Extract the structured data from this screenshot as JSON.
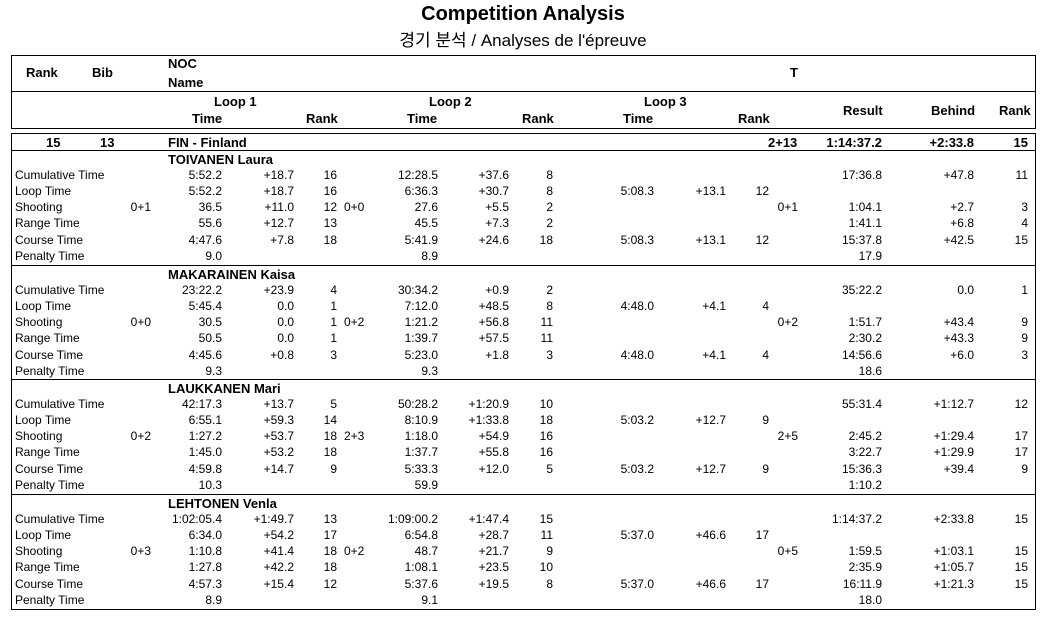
{
  "title": "Competition Analysis",
  "subtitle": "경기 분석 / Analyses de l'épreuve",
  "header": {
    "rank": "Rank",
    "bib": "Bib",
    "noc": "NOC",
    "name": "Name",
    "t": "T",
    "loop1": "Loop 1",
    "loop2": "Loop 2",
    "loop3": "Loop 3",
    "time": "Time",
    "rank_sub": "Rank",
    "result": "Result",
    "behind": "Behind",
    "rank_final": "Rank"
  },
  "team": {
    "rank": "15",
    "bib": "13",
    "noc": "FIN - Finland",
    "t": "2+13",
    "result": "1:14:37.2",
    "behind": "+2:33.8",
    "final_rank": "15"
  },
  "athletes": [
    {
      "name": "TOIVANEN Laura",
      "rows": [
        {
          "label": "Cumulative Time",
          "sh1": "",
          "l1t": "5:52.2",
          "l1b": "+18.7",
          "l1r": "16",
          "sh2": "",
          "l2t": "12:28.5",
          "l2b": "+37.6",
          "l2r": "8",
          "l3t": "",
          "l3b": "",
          "l3r": "",
          "sht": "",
          "res": "17:36.8",
          "beh": "+47.8",
          "rk": "11"
        },
        {
          "label": "Loop Time",
          "sh1": "",
          "l1t": "5:52.2",
          "l1b": "+18.7",
          "l1r": "16",
          "sh2": "",
          "l2t": "6:36.3",
          "l2b": "+30.7",
          "l2r": "8",
          "l3t": "5:08.3",
          "l3b": "+13.1",
          "l3r": "12",
          "sht": "",
          "res": "",
          "beh": "",
          "rk": ""
        },
        {
          "label": "Shooting",
          "sh1": "0+1",
          "l1t": "36.5",
          "l1b": "+11.0",
          "l1r": "12",
          "sh2": "0+0",
          "l2t": "27.6",
          "l2b": "+5.5",
          "l2r": "2",
          "l3t": "",
          "l3b": "",
          "l3r": "",
          "sht": "0+1",
          "res": "1:04.1",
          "beh": "+2.7",
          "rk": "3"
        },
        {
          "label": "Range Time",
          "sh1": "",
          "l1t": "55.6",
          "l1b": "+12.7",
          "l1r": "13",
          "sh2": "",
          "l2t": "45.5",
          "l2b": "+7.3",
          "l2r": "2",
          "l3t": "",
          "l3b": "",
          "l3r": "",
          "sht": "",
          "res": "1:41.1",
          "beh": "+6.8",
          "rk": "4"
        },
        {
          "label": "Course Time",
          "sh1": "",
          "l1t": "4:47.6",
          "l1b": "+7.8",
          "l1r": "18",
          "sh2": "",
          "l2t": "5:41.9",
          "l2b": "+24.6",
          "l2r": "18",
          "l3t": "5:08.3",
          "l3b": "+13.1",
          "l3r": "12",
          "sht": "",
          "res": "15:37.8",
          "beh": "+42.5",
          "rk": "15"
        },
        {
          "label": "Penalty Time",
          "sh1": "",
          "l1t": "9.0",
          "l1b": "",
          "l1r": "",
          "sh2": "",
          "l2t": "8.9",
          "l2b": "",
          "l2r": "",
          "l3t": "",
          "l3b": "",
          "l3r": "",
          "sht": "",
          "res": "17.9",
          "beh": "",
          "rk": ""
        }
      ]
    },
    {
      "name": "MAKARAINEN Kaisa",
      "rows": [
        {
          "label": "Cumulative Time",
          "sh1": "",
          "l1t": "23:22.2",
          "l1b": "+23.9",
          "l1r": "4",
          "sh2": "",
          "l2t": "30:34.2",
          "l2b": "+0.9",
          "l2r": "2",
          "l3t": "",
          "l3b": "",
          "l3r": "",
          "sht": "",
          "res": "35:22.2",
          "beh": "0.0",
          "rk": "1"
        },
        {
          "label": "Loop Time",
          "sh1": "",
          "l1t": "5:45.4",
          "l1b": "0.0",
          "l1r": "1",
          "sh2": "",
          "l2t": "7:12.0",
          "l2b": "+48.5",
          "l2r": "8",
          "l3t": "4:48.0",
          "l3b": "+4.1",
          "l3r": "4",
          "sht": "",
          "res": "",
          "beh": "",
          "rk": ""
        },
        {
          "label": "Shooting",
          "sh1": "0+0",
          "l1t": "30.5",
          "l1b": "0.0",
          "l1r": "1",
          "sh2": "0+2",
          "l2t": "1:21.2",
          "l2b": "+56.8",
          "l2r": "11",
          "l3t": "",
          "l3b": "",
          "l3r": "",
          "sht": "0+2",
          "res": "1:51.7",
          "beh": "+43.4",
          "rk": "9"
        },
        {
          "label": "Range Time",
          "sh1": "",
          "l1t": "50.5",
          "l1b": "0.0",
          "l1r": "1",
          "sh2": "",
          "l2t": "1:39.7",
          "l2b": "+57.5",
          "l2r": "11",
          "l3t": "",
          "l3b": "",
          "l3r": "",
          "sht": "",
          "res": "2:30.2",
          "beh": "+43.3",
          "rk": "9"
        },
        {
          "label": "Course Time",
          "sh1": "",
          "l1t": "4:45.6",
          "l1b": "+0.8",
          "l1r": "3",
          "sh2": "",
          "l2t": "5:23.0",
          "l2b": "+1.8",
          "l2r": "3",
          "l3t": "4:48.0",
          "l3b": "+4.1",
          "l3r": "4",
          "sht": "",
          "res": "14:56.6",
          "beh": "+6.0",
          "rk": "3"
        },
        {
          "label": "Penalty Time",
          "sh1": "",
          "l1t": "9.3",
          "l1b": "",
          "l1r": "",
          "sh2": "",
          "l2t": "9.3",
          "l2b": "",
          "l2r": "",
          "l3t": "",
          "l3b": "",
          "l3r": "",
          "sht": "",
          "res": "18.6",
          "beh": "",
          "rk": ""
        }
      ]
    },
    {
      "name": "LAUKKANEN Mari",
      "rows": [
        {
          "label": "Cumulative Time",
          "sh1": "",
          "l1t": "42:17.3",
          "l1b": "+13.7",
          "l1r": "5",
          "sh2": "",
          "l2t": "50:28.2",
          "l2b": "+1:20.9",
          "l2r": "10",
          "l3t": "",
          "l3b": "",
          "l3r": "",
          "sht": "",
          "res": "55:31.4",
          "beh": "+1:12.7",
          "rk": "12"
        },
        {
          "label": "Loop Time",
          "sh1": "",
          "l1t": "6:55.1",
          "l1b": "+59.3",
          "l1r": "14",
          "sh2": "",
          "l2t": "8:10.9",
          "l2b": "+1:33.8",
          "l2r": "18",
          "l3t": "5:03.2",
          "l3b": "+12.7",
          "l3r": "9",
          "sht": "",
          "res": "",
          "beh": "",
          "rk": ""
        },
        {
          "label": "Shooting",
          "sh1": "0+2",
          "l1t": "1:27.2",
          "l1b": "+53.7",
          "l1r": "18",
          "sh2": "2+3",
          "l2t": "1:18.0",
          "l2b": "+54.9",
          "l2r": "16",
          "l3t": "",
          "l3b": "",
          "l3r": "",
          "sht": "2+5",
          "res": "2:45.2",
          "beh": "+1:29.4",
          "rk": "17"
        },
        {
          "label": "Range Time",
          "sh1": "",
          "l1t": "1:45.0",
          "l1b": "+53.2",
          "l1r": "18",
          "sh2": "",
          "l2t": "1:37.7",
          "l2b": "+55.8",
          "l2r": "16",
          "l3t": "",
          "l3b": "",
          "l3r": "",
          "sht": "",
          "res": "3:22.7",
          "beh": "+1:29.9",
          "rk": "17"
        },
        {
          "label": "Course Time",
          "sh1": "",
          "l1t": "4:59.8",
          "l1b": "+14.7",
          "l1r": "9",
          "sh2": "",
          "l2t": "5:33.3",
          "l2b": "+12.0",
          "l2r": "5",
          "l3t": "5:03.2",
          "l3b": "+12.7",
          "l3r": "9",
          "sht": "",
          "res": "15:36.3",
          "beh": "+39.4",
          "rk": "9"
        },
        {
          "label": "Penalty Time",
          "sh1": "",
          "l1t": "10.3",
          "l1b": "",
          "l1r": "",
          "sh2": "",
          "l2t": "59.9",
          "l2b": "",
          "l2r": "",
          "l3t": "",
          "l3b": "",
          "l3r": "",
          "sht": "",
          "res": "1:10.2",
          "beh": "",
          "rk": ""
        }
      ]
    },
    {
      "name": "LEHTONEN Venla",
      "rows": [
        {
          "label": "Cumulative Time",
          "sh1": "",
          "l1t": "1:02:05.4",
          "l1b": "+1:49.7",
          "l1r": "13",
          "sh2": "",
          "l2t": "1:09:00.2",
          "l2b": "+1:47.4",
          "l2r": "15",
          "l3t": "",
          "l3b": "",
          "l3r": "",
          "sht": "",
          "res": "1:14:37.2",
          "beh": "+2:33.8",
          "rk": "15"
        },
        {
          "label": "Loop Time",
          "sh1": "",
          "l1t": "6:34.0",
          "l1b": "+54.2",
          "l1r": "17",
          "sh2": "",
          "l2t": "6:54.8",
          "l2b": "+28.7",
          "l2r": "11",
          "l3t": "5:37.0",
          "l3b": "+46.6",
          "l3r": "17",
          "sht": "",
          "res": "",
          "beh": "",
          "rk": ""
        },
        {
          "label": "Shooting",
          "sh1": "0+3",
          "l1t": "1:10.8",
          "l1b": "+41.4",
          "l1r": "18",
          "sh2": "0+2",
          "l2t": "48.7",
          "l2b": "+21.7",
          "l2r": "9",
          "l3t": "",
          "l3b": "",
          "l3r": "",
          "sht": "0+5",
          "res": "1:59.5",
          "beh": "+1:03.1",
          "rk": "15"
        },
        {
          "label": "Range Time",
          "sh1": "",
          "l1t": "1:27.8",
          "l1b": "+42.2",
          "l1r": "18",
          "sh2": "",
          "l2t": "1:08.1",
          "l2b": "+23.5",
          "l2r": "10",
          "l3t": "",
          "l3b": "",
          "l3r": "",
          "sht": "",
          "res": "2:35.9",
          "beh": "+1:05.7",
          "rk": "15"
        },
        {
          "label": "Course Time",
          "sh1": "",
          "l1t": "4:57.3",
          "l1b": "+15.4",
          "l1r": "12",
          "sh2": "",
          "l2t": "5:37.6",
          "l2b": "+19.5",
          "l2r": "8",
          "l3t": "5:37.0",
          "l3b": "+46.6",
          "l3r": "17",
          "sht": "",
          "res": "16:11.9",
          "beh": "+1:21.3",
          "rk": "15"
        },
        {
          "label": "Penalty Time",
          "sh1": "",
          "l1t": "8.9",
          "l1b": "",
          "l1r": "",
          "sh2": "",
          "l2t": "9.1",
          "l2b": "",
          "l2r": "",
          "l3t": "",
          "l3b": "",
          "l3r": "",
          "sht": "",
          "res": "18.0",
          "beh": "",
          "rk": ""
        }
      ]
    }
  ]
}
